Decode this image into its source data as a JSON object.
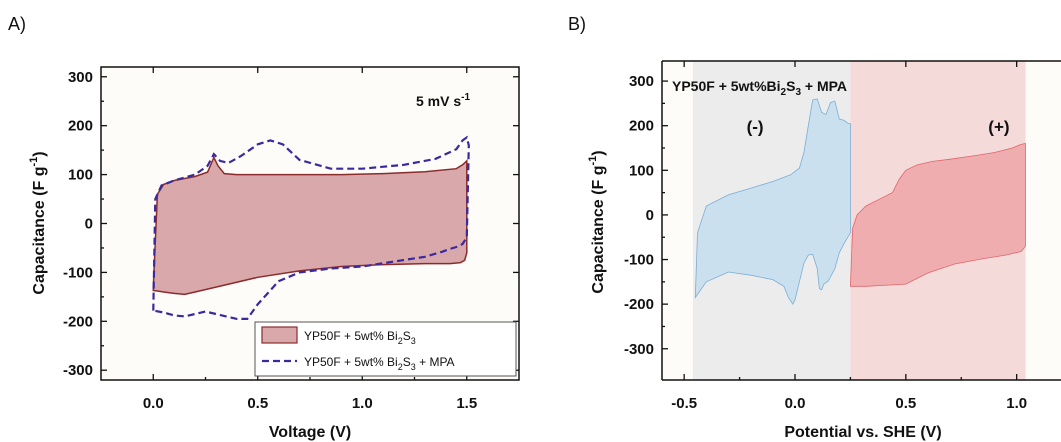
{
  "chart_data": [
    {
      "panel": "A)",
      "type": "line",
      "xlabel": "Voltage (V)",
      "ylabel_main": "Capacitance (F g",
      "ylabel_sup": "-1",
      "ylabel_end": ")",
      "xlim": [
        -0.25,
        1.75
      ],
      "ylim": [
        -320,
        320
      ],
      "xticks": [
        0.0,
        0.5,
        1.0,
        1.5
      ],
      "xtick_labels": [
        "0.0",
        "0.5",
        "1.0",
        "1.5"
      ],
      "yticks": [
        -300,
        -200,
        -100,
        0,
        100,
        200,
        300
      ],
      "ytick_labels": [
        "-300",
        "-200",
        "-100",
        "0",
        "100",
        "200",
        "300"
      ],
      "annotation": {
        "main": "5 mV s",
        "sup": "-1"
      },
      "legend_position": "bottom-right",
      "series": [
        {
          "name_main": "YP50F + 5wt% Bi",
          "name_sub1": "2",
          "name_mid": "S",
          "name_sub2": "3",
          "name_end": "",
          "style": "filled",
          "color": "#8b2c2c",
          "fill": "#d9a8ab",
          "x": [
            0.0,
            0.02,
            0.05,
            0.1,
            0.2,
            0.26,
            0.29,
            0.31,
            0.34,
            0.4,
            0.55,
            0.7,
            0.9,
            1.1,
            1.3,
            1.45,
            1.48,
            1.5,
            1.5,
            1.49,
            1.47,
            1.42,
            1.3,
            1.1,
            0.9,
            0.7,
            0.5,
            0.3,
            0.2,
            0.15,
            0.1,
            0.05,
            0.02,
            0.0,
            0.0
          ],
          "y": [
            -130,
            60,
            80,
            88,
            96,
            105,
            135,
            118,
            102,
            100,
            100,
            100,
            100,
            102,
            106,
            112,
            120,
            128,
            -60,
            -75,
            -80,
            -82,
            -82,
            -84,
            -88,
            -97,
            -110,
            -130,
            -140,
            -145,
            -143,
            -140,
            -138,
            -137,
            -130
          ]
        },
        {
          "name_main": "YP50F + 5wt% Bi",
          "name_sub1": "2",
          "name_mid": "S",
          "name_sub2": "3",
          "name_end": " + MPA",
          "style": "dashed",
          "color": "#3b2a9e",
          "x": [
            0.0,
            0.01,
            0.04,
            0.1,
            0.2,
            0.26,
            0.29,
            0.32,
            0.36,
            0.42,
            0.5,
            0.56,
            0.62,
            0.7,
            0.85,
            1.0,
            1.2,
            1.35,
            1.45,
            1.48,
            1.5,
            1.51,
            1.5,
            1.48,
            1.45,
            1.42,
            1.38,
            1.3,
            1.15,
            1.0,
            0.85,
            0.7,
            0.6,
            0.5,
            0.45,
            0.4,
            0.3,
            0.25,
            0.2,
            0.15,
            0.1,
            0.05,
            0.0,
            0.0
          ],
          "y": [
            -178,
            50,
            78,
            88,
            100,
            118,
            142,
            128,
            124,
            138,
            162,
            170,
            162,
            130,
            112,
            112,
            120,
            132,
            152,
            170,
            176,
            160,
            -28,
            -42,
            -48,
            -52,
            -58,
            -68,
            -78,
            -88,
            -92,
            -100,
            -118,
            -165,
            -195,
            -195,
            -185,
            -180,
            -185,
            -190,
            -188,
            -182,
            -178,
            -178
          ]
        }
      ]
    },
    {
      "panel": "B)",
      "type": "area",
      "xlabel": "Potential vs. SHE (V)",
      "ylabel_main": "Capacitance (F g",
      "ylabel_sup": "-1",
      "ylabel_end": ")",
      "xlim": [
        -0.6,
        1.2
      ],
      "ylim": [
        -370,
        345
      ],
      "xticks": [
        -0.5,
        0.0,
        0.5,
        1.0
      ],
      "xtick_labels": [
        "-0.5",
        "0.0",
        "0.5",
        "1.0"
      ],
      "yticks": [
        -300,
        -200,
        -100,
        0,
        100,
        200,
        300
      ],
      "ytick_labels": [
        "-300",
        "-200",
        "-100",
        "0",
        "100",
        "200",
        "300"
      ],
      "title_parts": {
        "main": "YP50F + 5wt%Bi",
        "sub1": "2",
        "mid": "S",
        "sub2": "3",
        "end": " + MPA"
      },
      "regions": [
        {
          "label": "(-)",
          "x_range": [
            -0.46,
            0.25
          ],
          "color": "#ececec",
          "label_color": "#4f9bd1"
        },
        {
          "label": "(+)",
          "x_range": [
            0.25,
            1.04
          ],
          "color": "#f5dada",
          "label_color": "#e65a5a"
        }
      ],
      "series": [
        {
          "region": "(-)",
          "color": "#7aaed6",
          "fill": "#c7dff0",
          "x": [
            -0.45,
            -0.44,
            -0.4,
            -0.3,
            -0.2,
            -0.1,
            -0.02,
            0.02,
            0.04,
            0.06,
            0.08,
            0.1,
            0.12,
            0.14,
            0.16,
            0.18,
            0.2,
            0.22,
            0.24,
            0.25,
            0.25,
            0.22,
            0.2,
            0.18,
            0.15,
            0.13,
            0.12,
            0.11,
            0.1,
            0.08,
            0.06,
            0.04,
            0.02,
            0.0,
            -0.01,
            -0.03,
            -0.05,
            -0.1,
            -0.2,
            -0.3,
            -0.4,
            -0.45,
            -0.45
          ],
          "y": [
            -185,
            -40,
            20,
            45,
            60,
            75,
            90,
            105,
            140,
            200,
            258,
            260,
            230,
            225,
            252,
            255,
            215,
            212,
            205,
            205,
            -40,
            -65,
            -85,
            -120,
            -148,
            -155,
            -168,
            -165,
            -120,
            -88,
            -90,
            -108,
            -150,
            -190,
            -200,
            -185,
            -160,
            -145,
            -135,
            -128,
            -150,
            -185,
            -185
          ]
        },
        {
          "region": "(+)",
          "color": "#e0666b",
          "fill": "#f0a7ab",
          "x": [
            0.25,
            0.26,
            0.28,
            0.32,
            0.38,
            0.44,
            0.47,
            0.5,
            0.55,
            0.62,
            0.7,
            0.8,
            0.9,
            0.98,
            1.02,
            1.04,
            1.04,
            1.02,
            0.95,
            0.85,
            0.72,
            0.6,
            0.5,
            0.4,
            0.32,
            0.27,
            0.26,
            0.25,
            0.25
          ],
          "y": [
            -160,
            -30,
            0,
            20,
            35,
            50,
            80,
            100,
            112,
            120,
            125,
            132,
            140,
            150,
            158,
            160,
            -70,
            -82,
            -90,
            -98,
            -110,
            -130,
            -155,
            -158,
            -160,
            -160,
            -160,
            -160,
            -160
          ]
        }
      ]
    }
  ]
}
